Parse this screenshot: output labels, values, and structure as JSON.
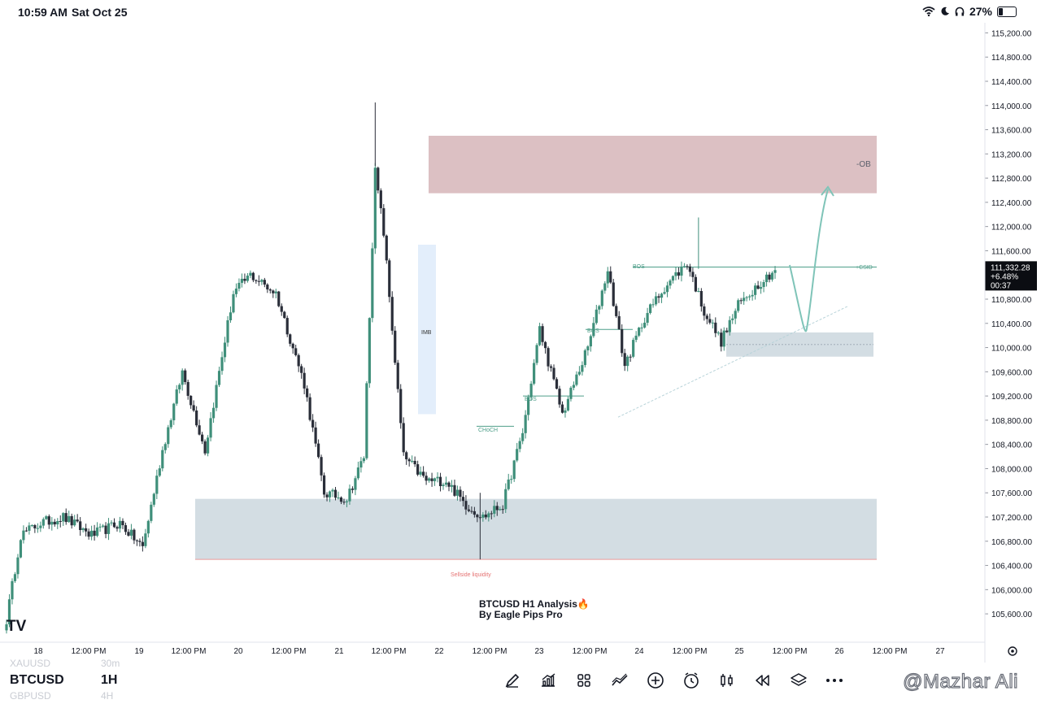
{
  "status_bar": {
    "time": "10:59 AM",
    "date": "Sat Oct 25",
    "battery": "27%"
  },
  "symbol": "BTCUSD",
  "timeframe": "1H",
  "watchlist_ghost": [
    {
      "symbol": "XAUUSD",
      "tf": "30m"
    },
    {
      "symbol": "GBPUSD",
      "tf": "4H"
    }
  ],
  "price_tag": {
    "price": "111,332.28",
    "change": "+6.48%",
    "countdown": "00:37"
  },
  "annotations": {
    "ob": "-OB",
    "imb": "IMB",
    "csid": "+CSID",
    "bos": "BOS",
    "choch": "CHoCH",
    "sellside": "Sellside liquidity",
    "title_line1": "BTCUSD H1 Analysis🔥",
    "title_line2": "By Eagle Pips Pro"
  },
  "watermark": "@Mazhar Ali",
  "logo": "TV",
  "colors": {
    "up": "#3f8f7a",
    "down": "#2a2e39",
    "ob_zone": "#dcc0c3",
    "demand_zone": "#d3dde3",
    "imb_zone": "#e3eefb",
    "arrow": "#7fc4b8",
    "sellside_line": "#e89a9a"
  },
  "tools": [
    "pen-icon",
    "indicators-icon",
    "templates-icon",
    "drawing-icon",
    "add-icon",
    "alert-icon",
    "replay-icon",
    "rewind-icon",
    "layers-icon",
    "more-icon"
  ],
  "chart_data": {
    "type": "candlestick",
    "title": "BTCUSD H1 Analysis🔥",
    "ylim": [
      105400,
      115300
    ],
    "y_ticks": [
      "115,200.00",
      "114,800.00",
      "114,400.00",
      "114,000.00",
      "113,600.00",
      "113,200.00",
      "112,800.00",
      "112,400.00",
      "112,000.00",
      "111,600.00",
      "111,200.00",
      "110,800.00",
      "110,400.00",
      "110,000.00",
      "109,600.00",
      "109,200.00",
      "108,800.00",
      "108,400.00",
      "108,000.00",
      "107,600.00",
      "107,200.00",
      "106,800.00",
      "106,400.00",
      "106,000.00",
      "105,600.00"
    ],
    "x_ticks": [
      "18",
      "12:00 PM",
      "19",
      "12:00 PM",
      "20",
      "12:00 PM",
      "21",
      "12:00 PM",
      "22",
      "12:00 PM",
      "23",
      "12:00 PM",
      "24",
      "12:00 PM",
      "25",
      "12:00 PM",
      "26",
      "12:00 PM",
      "27"
    ],
    "last_price": 111332.28,
    "zones": {
      "bearish_ob": [
        112550,
        113500
      ],
      "demand": [
        106500,
        107500
      ],
      "imbalance": [
        108900,
        111700
      ],
      "small_demand": [
        109850,
        110250
      ]
    },
    "levels": {
      "bos_1": 109200,
      "bos_2": 110300,
      "bos_3": 111330,
      "choch": 108700,
      "sellside_liquidity": 106500
    },
    "anchors": [
      {
        "idx": 0,
        "price": 105500
      },
      {
        "idx": 5,
        "price": 106900
      },
      {
        "idx": 12,
        "price": 107100
      },
      {
        "idx": 20,
        "price": 107200
      },
      {
        "idx": 30,
        "price": 106900
      },
      {
        "idx": 40,
        "price": 107100
      },
      {
        "idx": 48,
        "price": 106700
      },
      {
        "idx": 55,
        "price": 108300
      },
      {
        "idx": 62,
        "price": 109600
      },
      {
        "idx": 70,
        "price": 108300
      },
      {
        "idx": 80,
        "price": 110900
      },
      {
        "idx": 86,
        "price": 111200
      },
      {
        "idx": 95,
        "price": 110900
      },
      {
        "idx": 105,
        "price": 109400
      },
      {
        "idx": 112,
        "price": 107600
      },
      {
        "idx": 120,
        "price": 107500
      },
      {
        "idx": 126,
        "price": 108200
      },
      {
        "idx": 130,
        "price": 112900
      },
      {
        "idx": 133,
        "price": 111900
      },
      {
        "idx": 140,
        "price": 108200
      },
      {
        "idx": 148,
        "price": 107800
      },
      {
        "idx": 155,
        "price": 107800
      },
      {
        "idx": 162,
        "price": 107400
      },
      {
        "idx": 168,
        "price": 107200
      },
      {
        "idx": 175,
        "price": 107400
      },
      {
        "idx": 182,
        "price": 108600
      },
      {
        "idx": 188,
        "price": 110300
      },
      {
        "idx": 196,
        "price": 108900
      },
      {
        "idx": 205,
        "price": 110000
      },
      {
        "idx": 212,
        "price": 111300
      },
      {
        "idx": 218,
        "price": 109700
      },
      {
        "idx": 225,
        "price": 110500
      },
      {
        "idx": 232,
        "price": 111000
      },
      {
        "idx": 240,
        "price": 111400
      },
      {
        "idx": 246,
        "price": 110600
      },
      {
        "idx": 252,
        "price": 110100
      },
      {
        "idx": 258,
        "price": 110700
      },
      {
        "idx": 265,
        "price": 111050
      },
      {
        "idx": 272,
        "price": 111330
      }
    ]
  }
}
